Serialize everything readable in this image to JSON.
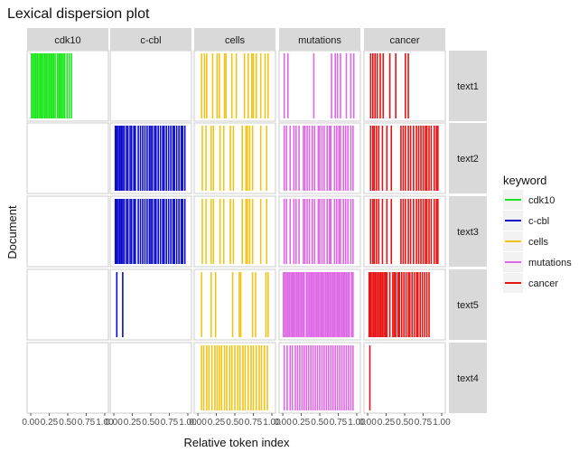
{
  "chart_data": {
    "type": "lexical-dispersion",
    "title": "Lexical dispersion plot",
    "xlabel": "Relative token index",
    "ylabel": "Document",
    "xlim": [
      0,
      1
    ],
    "x_ticks": [
      "0.00",
      "0.25",
      "0.50",
      "0.75",
      "1.00"
    ],
    "keywords": [
      "cdk10",
      "c-cbl",
      "cells",
      "mutations",
      "cancer"
    ],
    "documents": [
      "text1",
      "text2",
      "text3",
      "text5",
      "text4"
    ],
    "legend": {
      "title": "keyword",
      "position": "right",
      "entries": [
        {
          "name": "cdk10",
          "color": "#1ee61e"
        },
        {
          "name": "c-cbl",
          "color": "#0a0acc"
        },
        {
          "name": "cells",
          "color": "#f2c418"
        },
        {
          "name": "mutations",
          "color": "#de68e6"
        },
        {
          "name": "cancer",
          "color": "#e81313"
        }
      ]
    },
    "occurrences": {
      "text1": {
        "cdk10": [
          0.01,
          0.03,
          0.05,
          0.07,
          0.09,
          0.11,
          0.13,
          0.15,
          0.17,
          0.19,
          0.21,
          0.23,
          0.25,
          0.27,
          0.29,
          0.31,
          0.33,
          0.36,
          0.38,
          0.4,
          0.42,
          0.44,
          0.46,
          0.49,
          0.52,
          0.55
        ],
        "c-cbl": [],
        "cells": [
          0.05,
          0.09,
          0.12,
          0.2,
          0.26,
          0.29,
          0.36,
          0.38,
          0.46,
          0.52,
          0.63,
          0.68,
          0.73,
          0.75,
          0.79,
          0.85,
          0.91,
          0.95
        ],
        "mutations": [
          0.02,
          0.07,
          0.42,
          0.66,
          0.71,
          0.74,
          0.78,
          0.86,
          0.92,
          0.96
        ],
        "cancer": [
          0.04,
          0.07,
          0.1,
          0.13,
          0.17,
          0.21,
          0.3,
          0.38,
          0.51,
          0.55
        ]
      },
      "text2": {
        "cdk10": [],
        "c-cbl": [
          0.02,
          0.04,
          0.06,
          0.08,
          0.1,
          0.12,
          0.14,
          0.17,
          0.19,
          0.22,
          0.24,
          0.27,
          0.29,
          0.33,
          0.36,
          0.39,
          0.42,
          0.45,
          0.48,
          0.5,
          0.52,
          0.55,
          0.57,
          0.6,
          0.63,
          0.66,
          0.68,
          0.71,
          0.74,
          0.77,
          0.8,
          0.82,
          0.85,
          0.88,
          0.91,
          0.93,
          0.96
        ],
        "cells": [
          0.06,
          0.11,
          0.18,
          0.21,
          0.3,
          0.35,
          0.44,
          0.48,
          0.6,
          0.65,
          0.67,
          0.7,
          0.74,
          0.85,
          0.93
        ],
        "mutations": [
          0.02,
          0.05,
          0.1,
          0.15,
          0.18,
          0.22,
          0.28,
          0.3,
          0.33,
          0.36,
          0.4,
          0.43,
          0.48,
          0.5,
          0.53,
          0.56,
          0.6,
          0.63,
          0.65,
          0.7,
          0.73,
          0.76,
          0.78,
          0.82,
          0.85,
          0.88,
          0.92,
          0.95
        ],
        "cancer": [
          0.04,
          0.07,
          0.09,
          0.12,
          0.15,
          0.2,
          0.26,
          0.32,
          0.45,
          0.48,
          0.51,
          0.55,
          0.58,
          0.62,
          0.66,
          0.69,
          0.72,
          0.75,
          0.78,
          0.8,
          0.83,
          0.86,
          0.9,
          0.93,
          0.95
        ]
      },
      "text3": {
        "cdk10": [],
        "c-cbl": [
          0.02,
          0.04,
          0.06,
          0.08,
          0.1,
          0.12,
          0.14,
          0.17,
          0.19,
          0.22,
          0.24,
          0.27,
          0.29,
          0.33,
          0.36,
          0.39,
          0.42,
          0.45,
          0.48,
          0.5,
          0.52,
          0.55,
          0.57,
          0.6,
          0.63,
          0.66,
          0.68,
          0.71,
          0.74,
          0.77,
          0.8,
          0.82,
          0.85,
          0.88,
          0.91,
          0.93,
          0.96
        ],
        "cells": [
          0.06,
          0.11,
          0.18,
          0.21,
          0.3,
          0.35,
          0.44,
          0.48,
          0.6,
          0.65,
          0.67,
          0.7,
          0.74,
          0.85,
          0.93
        ],
        "mutations": [
          0.02,
          0.05,
          0.1,
          0.15,
          0.18,
          0.22,
          0.28,
          0.3,
          0.33,
          0.36,
          0.4,
          0.43,
          0.48,
          0.5,
          0.53,
          0.56,
          0.6,
          0.63,
          0.65,
          0.7,
          0.73,
          0.76,
          0.78,
          0.82,
          0.85,
          0.88,
          0.92,
          0.95
        ],
        "cancer": [
          0.04,
          0.07,
          0.09,
          0.12,
          0.15,
          0.2,
          0.26,
          0.32,
          0.45,
          0.48,
          0.51,
          0.55,
          0.58,
          0.62,
          0.66,
          0.69,
          0.72,
          0.75,
          0.78,
          0.8,
          0.83,
          0.86,
          0.9,
          0.93,
          0.95
        ]
      },
      "text5": {
        "cdk10": [],
        "c-cbl": [
          0.04,
          0.12
        ],
        "cells": [
          0.05,
          0.18,
          0.24,
          0.47,
          0.56,
          0.58,
          0.74,
          0.78,
          0.92,
          0.95
        ],
        "mutations": [
          0.01,
          0.03,
          0.05,
          0.07,
          0.09,
          0.11,
          0.13,
          0.15,
          0.17,
          0.19,
          0.21,
          0.23,
          0.25,
          0.27,
          0.29,
          0.32,
          0.34,
          0.36,
          0.38,
          0.4,
          0.42,
          0.44,
          0.46,
          0.48,
          0.5,
          0.52,
          0.54,
          0.56,
          0.58,
          0.6,
          0.62,
          0.64,
          0.66,
          0.68,
          0.7,
          0.72,
          0.74,
          0.76,
          0.78,
          0.8,
          0.82,
          0.84,
          0.86,
          0.88,
          0.9,
          0.93,
          0.95
        ],
        "cancer": [
          0.02,
          0.04,
          0.06,
          0.08,
          0.1,
          0.12,
          0.14,
          0.16,
          0.18,
          0.2,
          0.22,
          0.24,
          0.26,
          0.3,
          0.34,
          0.36,
          0.38,
          0.41,
          0.43,
          0.46,
          0.49,
          0.52,
          0.55,
          0.57,
          0.6,
          0.63,
          0.66,
          0.68,
          0.71,
          0.74,
          0.77,
          0.8,
          0.83
        ]
      },
      "text4": {
        "cdk10": [],
        "c-cbl": [],
        "cells": [
          0.05,
          0.08,
          0.12,
          0.15,
          0.19,
          0.23,
          0.26,
          0.29,
          0.32,
          0.36,
          0.39,
          0.43,
          0.46,
          0.5,
          0.54,
          0.57,
          0.61,
          0.64,
          0.68,
          0.72,
          0.75,
          0.79,
          0.83,
          0.86,
          0.9,
          0.94
        ],
        "mutations": [
          0.02,
          0.06,
          0.1,
          0.13,
          0.17,
          0.2,
          0.23,
          0.26,
          0.29,
          0.32,
          0.35,
          0.38,
          0.41,
          0.44,
          0.47,
          0.5,
          0.53,
          0.56,
          0.59,
          0.62,
          0.65,
          0.68,
          0.71,
          0.74,
          0.77,
          0.8,
          0.83,
          0.86,
          0.89,
          0.92,
          0.95
        ],
        "cancer": [
          0.03
        ]
      }
    }
  }
}
